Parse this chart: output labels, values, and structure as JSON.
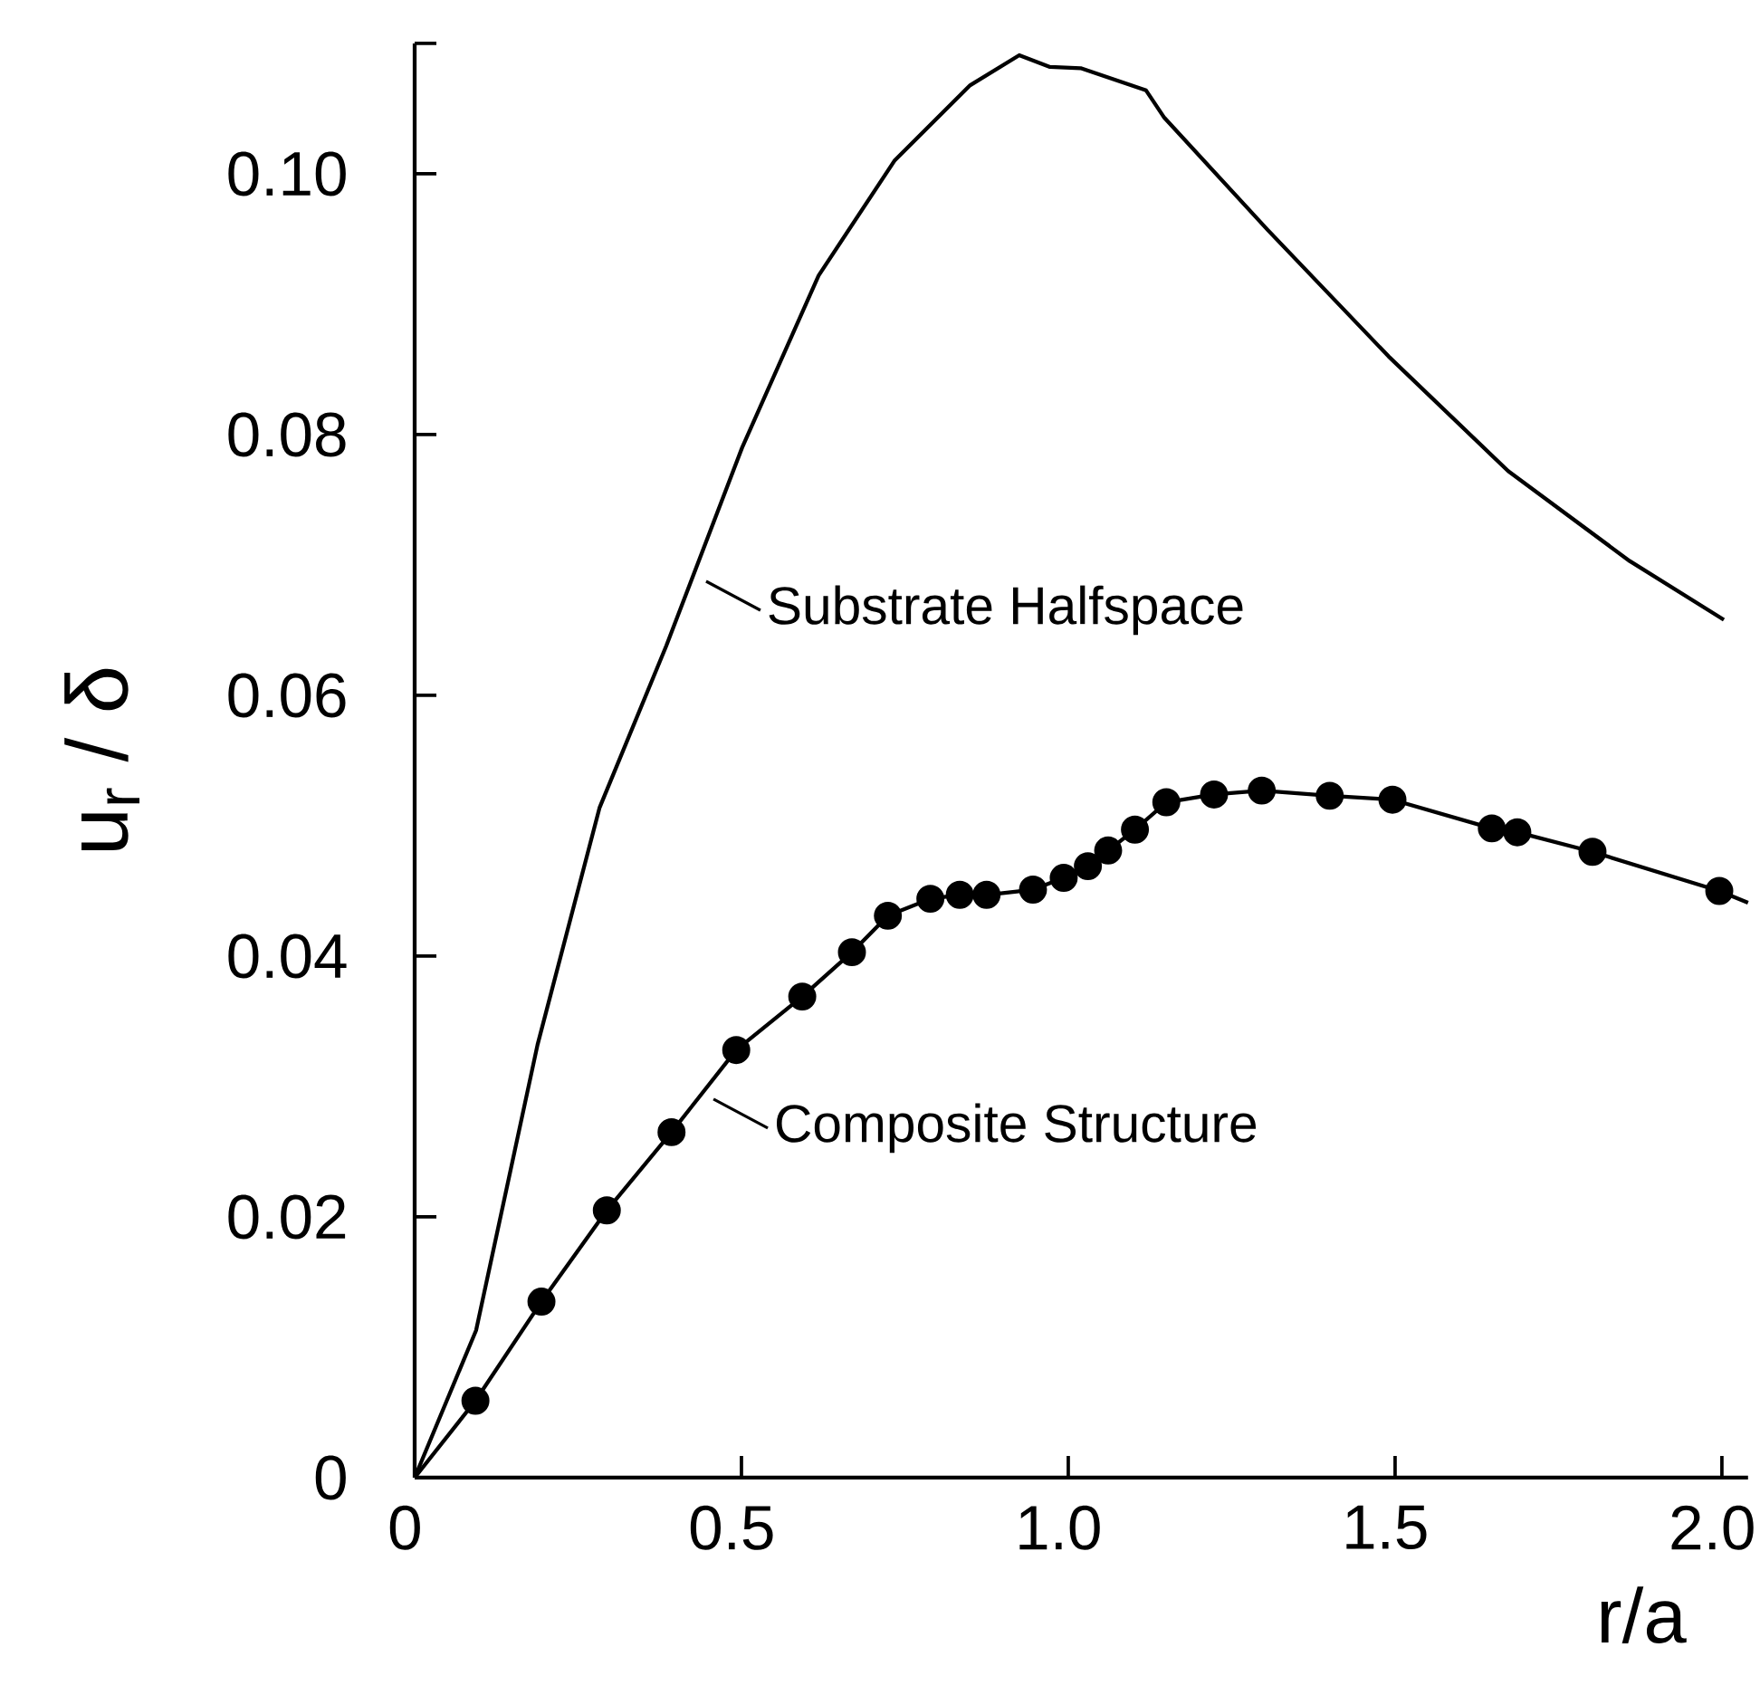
{
  "chart_data": {
    "type": "line",
    "xlabel": "r/a",
    "ylabel": "u$_{r}$ / δ",
    "xlim": [
      0,
      2.04
    ],
    "ylim": [
      0,
      0.11
    ],
    "xticks": [
      0,
      0.5,
      {
        "value": 1,
        "label": "1.0"
      },
      1.5,
      {
        "value": 2,
        "label": "2.0"
      }
    ],
    "yticks": [
      0,
      0.02,
      0.04,
      0.06,
      0.08,
      {
        "value": 0.1,
        "label": "0.10"
      },
      {
        "value": 0.11,
        "label": null
      }
    ],
    "grid": false,
    "line_style": "solid",
    "series": [
      {
        "marker": "none",
        "color": "#000000",
        "x": [
          0,
          0.094,
          0.188,
          0.283,
          0.385,
          0.501,
          0.618,
          0.734,
          0.85,
          0.925,
          0.972,
          1.019,
          1.119,
          1.147,
          1.305,
          1.49,
          1.673,
          1.859,
          2.003
        ],
        "values": [
          0,
          0.0113,
          0.0332,
          0.0514,
          0.0638,
          0.079,
          0.0922,
          0.101,
          0.1068,
          0.1091,
          0.1082,
          0.1081,
          0.1064,
          0.1043,
          0.0957,
          0.086,
          0.0772,
          0.0703,
          0.0658
        ]
      },
      {
        "marker": "none",
        "color": "#000000",
        "x": [
          0,
          0.093,
          0.194,
          0.294,
          0.393,
          0.492,
          0.593,
          0.669,
          0.724,
          0.789,
          0.834,
          0.875,
          0.946,
          0.993,
          1.03,
          1.061,
          1.102,
          1.15,
          1.223,
          1.296,
          1.4,
          1.496,
          1.648,
          1.687,
          1.802,
          1.996,
          2.04
        ],
        "values": [
          0,
          0.0059,
          0.0135,
          0.0205,
          0.0265,
          0.0328,
          0.0369,
          0.0403,
          0.0431,
          0.0444,
          0.0447,
          0.0447,
          0.0451,
          0.046,
          0.0469,
          0.0481,
          0.0497,
          0.0518,
          0.0524,
          0.0527,
          0.0523,
          0.052,
          0.0498,
          0.0495,
          0.048,
          0.045,
          0.0441
        ]
      },
      {
        "type": "scatter",
        "marker": "circle",
        "color": "#000000",
        "x": [
          0.093,
          0.194,
          0.294,
          0.393,
          0.492,
          0.593,
          0.669,
          0.724,
          0.789,
          0.834,
          0.875,
          0.946,
          0.993,
          1.03,
          1.061,
          1.102,
          1.15,
          1.223,
          1.296,
          1.4,
          1.496,
          1.648,
          1.687,
          1.802,
          1.996
        ],
        "values": [
          0.0059,
          0.0135,
          0.0205,
          0.0265,
          0.0328,
          0.0369,
          0.0403,
          0.0431,
          0.0444,
          0.0447,
          0.0447,
          0.0451,
          0.046,
          0.0469,
          0.0481,
          0.0497,
          0.0518,
          0.0524,
          0.0527,
          0.0523,
          0.052,
          0.0498,
          0.0495,
          0.048,
          0.045
        ]
      }
    ],
    "annotations": [
      "Substrate Halfspace",
      "Composite Structure"
    ]
  }
}
